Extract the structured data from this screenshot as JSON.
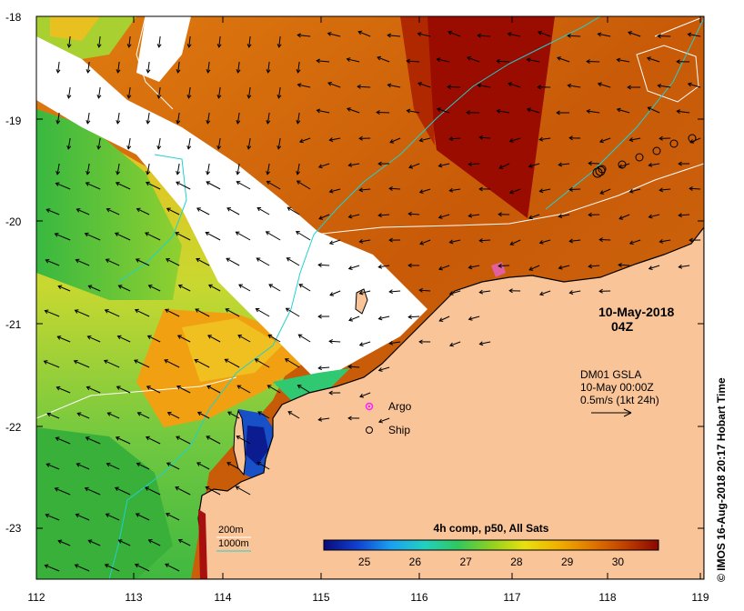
{
  "map": {
    "date": "10-May-2018",
    "time": "04Z",
    "product": "DM01 GSLA",
    "product_time": "10-May 00:00Z",
    "vector_scale": "0.5m/s (1kt 24h)",
    "legend": {
      "argo": "Argo",
      "ship": "Ship"
    },
    "contours": {
      "c200": "200m",
      "c1000": "1000m"
    },
    "colorbar": {
      "title": "4h comp, p50, All Sats",
      "ticks": [
        "25",
        "26",
        "27",
        "28",
        "29",
        "30"
      ],
      "range": [
        24.2,
        30.8
      ],
      "colors": [
        "#0a0a7a",
        "#1040d0",
        "#1aa0f0",
        "#22d0c0",
        "#30c860",
        "#8fd020",
        "#e8e010",
        "#f0b000",
        "#e07800",
        "#c04000",
        "#8a0800"
      ]
    },
    "credit": "© IMOS 16-Aug-2018 20:17 Hobart Time",
    "axes": {
      "lon_labels": [
        "112",
        "113",
        "114",
        "115",
        "116",
        "117",
        "118",
        "119"
      ],
      "lat_labels": [
        "-18",
        "-19",
        "-20",
        "-21",
        "-22",
        "-23"
      ]
    },
    "colors": {
      "land": "#f9c497",
      "contour_200": "#ffffff",
      "contour_1000": "#20d0d0",
      "argo": "#ff20ff",
      "coast": "#000000"
    }
  }
}
